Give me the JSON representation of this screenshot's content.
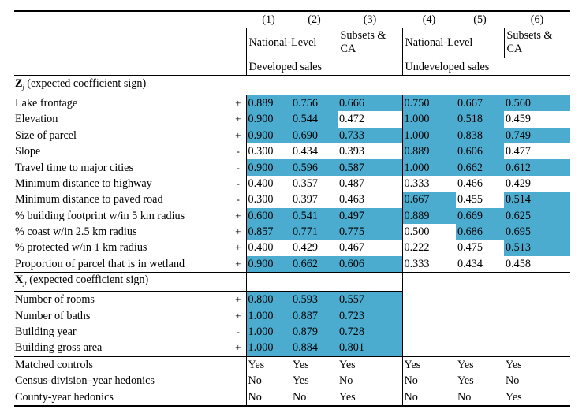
{
  "header": {
    "col_numbers": [
      "(1)",
      "(2)",
      "(3)",
      "(4)",
      "(5)",
      "(6)"
    ],
    "national_level_1": "National-Level",
    "subsets_1": "Subsets & CA",
    "national_level_2": "National-Level",
    "subsets_2": "Subsets & CA",
    "developed_sales": "Developed sales",
    "undeveloped_sales": "Undeveloped sales"
  },
  "sections": {
    "z_symbol": "Z",
    "z_sub": "j",
    "z_text": " (expected coefficient sign)",
    "x_symbol": "X",
    "x_sub": "jt",
    "x_text": " (expected coefficient sign)"
  },
  "z_rows": [
    {
      "label": "Lake frontage",
      "sign": "+",
      "v": [
        "0.889",
        "0.756",
        "0.666",
        "0.750",
        "0.667",
        "0.560"
      ],
      "hl": [
        true,
        true,
        true,
        true,
        true,
        true
      ]
    },
    {
      "label": "Elevation",
      "sign": "+",
      "v": [
        "0.900",
        "0.544",
        "0.472",
        "1.000",
        "0.518",
        "0.459"
      ],
      "hl": [
        true,
        true,
        false,
        true,
        true,
        false
      ]
    },
    {
      "label": "Size of parcel",
      "sign": "+",
      "v": [
        "0.900",
        "0.690",
        "0.733",
        "1.000",
        "0.838",
        "0.749"
      ],
      "hl": [
        true,
        true,
        true,
        true,
        true,
        true
      ]
    },
    {
      "label": "Slope",
      "sign": "-",
      "v": [
        "0.300",
        "0.434",
        "0.393",
        "0.889",
        "0.606",
        "0.477"
      ],
      "hl": [
        false,
        false,
        false,
        true,
        true,
        false
      ]
    },
    {
      "label": "Travel time to major cities",
      "sign": "-",
      "v": [
        "0.900",
        "0.596",
        "0.587",
        "1.000",
        "0.662",
        "0.612"
      ],
      "hl": [
        true,
        true,
        true,
        true,
        true,
        true
      ]
    },
    {
      "label": "Minimum distance to highway",
      "sign": "-",
      "v": [
        "0.400",
        "0.357",
        "0.487",
        "0.333",
        "0.466",
        "0.429"
      ],
      "hl": [
        false,
        false,
        false,
        false,
        false,
        false
      ]
    },
    {
      "label": "Minimum distance to paved road",
      "sign": "-",
      "v": [
        "0.300",
        "0.397",
        "0.463",
        "0.667",
        "0.455",
        "0.514"
      ],
      "hl": [
        false,
        false,
        false,
        true,
        false,
        true
      ]
    },
    {
      "label": "% building footprint w/in 5 km radius",
      "sign": "+",
      "v": [
        "0.600",
        "0.541",
        "0.497",
        "0.889",
        "0.669",
        "0.625"
      ],
      "hl": [
        true,
        true,
        true,
        true,
        true,
        true
      ]
    },
    {
      "label": "% coast w/in 2.5 km radius",
      "sign": "+",
      "v": [
        "0.857",
        "0.771",
        "0.775",
        "0.500",
        "0.686",
        "0.695"
      ],
      "hl": [
        true,
        true,
        true,
        false,
        true,
        true
      ]
    },
    {
      "label": "% protected w/in 1 km radius",
      "sign": "+",
      "v": [
        "0.400",
        "0.429",
        "0.467",
        "0.222",
        "0.475",
        "0.513"
      ],
      "hl": [
        false,
        false,
        false,
        false,
        false,
        true
      ]
    },
    {
      "label": "Proportion of parcel that is in wetland",
      "sign": "+",
      "v": [
        "0.900",
        "0.662",
        "0.606",
        "0.333",
        "0.434",
        "0.458"
      ],
      "hl": [
        true,
        true,
        true,
        false,
        false,
        false
      ]
    }
  ],
  "x_rows": [
    {
      "label": "Number of rooms",
      "sign": "+",
      "v": [
        "0.800",
        "0.593",
        "0.557"
      ],
      "hl": [
        true,
        true,
        true
      ]
    },
    {
      "label": "Number of baths",
      "sign": "+",
      "v": [
        "1.000",
        "0.887",
        "0.723"
      ],
      "hl": [
        true,
        true,
        true
      ]
    },
    {
      "label": "Building year",
      "sign": "-",
      "v": [
        "1.000",
        "0.879",
        "0.728"
      ],
      "hl": [
        true,
        true,
        true
      ]
    },
    {
      "label": "Building gross area",
      "sign": "+",
      "v": [
        "1.000",
        "0.884",
        "0.801"
      ],
      "hl": [
        true,
        true,
        true
      ]
    }
  ],
  "footer_rows": [
    {
      "label": "Matched controls",
      "v": [
        "Yes",
        "Yes",
        "Yes",
        "Yes",
        "Yes",
        "Yes"
      ]
    },
    {
      "label": "Census-division–year hedonics",
      "v": [
        "No",
        "Yes",
        "No",
        "No",
        "Yes",
        "No"
      ]
    },
    {
      "label": "County-year hedonics",
      "v": [
        "No",
        "No",
        "Yes",
        "No",
        "No",
        "Yes"
      ]
    }
  ],
  "colors": {
    "highlight": "#4bacd0"
  }
}
